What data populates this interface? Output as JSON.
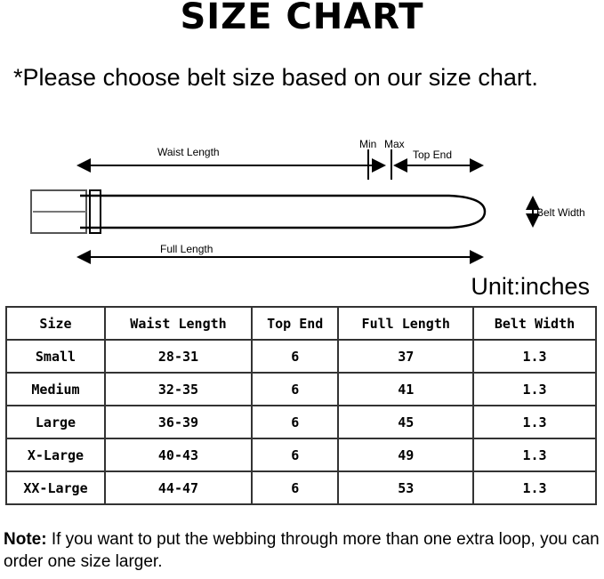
{
  "title": "SIZE CHART",
  "intro": "*Please choose belt size based on our size chart.",
  "diagram": {
    "waist_length": "Waist Length",
    "min": "Min",
    "max": "Max",
    "top_end": "Top End",
    "belt_width": "Belt Width",
    "full_length": "Full Length"
  },
  "unit": "Unit:inches",
  "table": {
    "headers": [
      "Size",
      "Waist Length",
      "Top End",
      "Full Length",
      "Belt Width"
    ],
    "rows": [
      [
        "Small",
        "28-31",
        "6",
        "37",
        "1.3"
      ],
      [
        "Medium",
        "32-35",
        "6",
        "41",
        "1.3"
      ],
      [
        "Large",
        "36-39",
        "6",
        "45",
        "1.3"
      ],
      [
        "X-Large",
        "40-43",
        "6",
        "49",
        "1.3"
      ],
      [
        "XX-Large",
        "44-47",
        "6",
        "53",
        "1.3"
      ]
    ]
  },
  "note": {
    "label": "Note:",
    "text": " If you want to put the webbing through more than one extra loop,  you can order one size larger."
  }
}
